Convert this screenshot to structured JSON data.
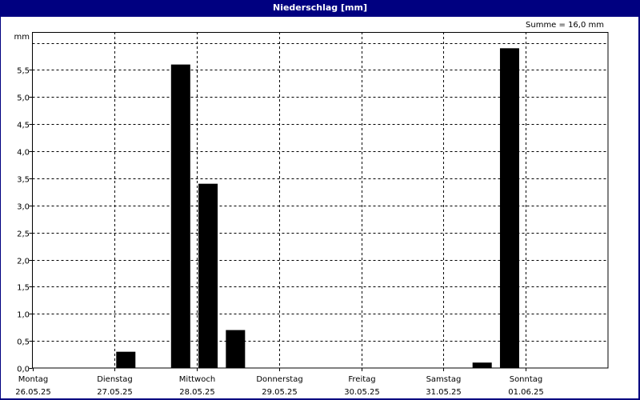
{
  "window": {
    "title": "Niederschlag [mm]"
  },
  "colors": {
    "titlebar": "#000080",
    "bars": "#000000",
    "background": "#ffffff"
  },
  "chart_data": {
    "type": "bar",
    "title": "Niederschlag [mm]",
    "ylabel": "mm",
    "annotation": "Summe = 16,0 mm",
    "ylim": [
      0,
      6.2
    ],
    "yticks": [
      "0,0",
      "0,5",
      "1,0",
      "1,5",
      "2,0",
      "2,5",
      "3,0",
      "3,5",
      "4,0",
      "4,5",
      "5,0",
      "5,5"
    ],
    "grid": true,
    "periods_per_day": 3,
    "days": [
      {
        "name": "Montag",
        "date": "26.05.25"
      },
      {
        "name": "Dienstag",
        "date": "27.05.25"
      },
      {
        "name": "Mittwoch",
        "date": "28.05.25"
      },
      {
        "name": "Donnerstag",
        "date": "29.05.25"
      },
      {
        "name": "Freitag",
        "date": "30.05.25"
      },
      {
        "name": "Samstag",
        "date": "31.05.25"
      },
      {
        "name": "Sonntag",
        "date": "01.06.25"
      }
    ],
    "values": [
      0,
      0,
      0,
      0.3,
      0,
      5.6,
      3.4,
      0.7,
      0,
      0,
      0,
      0,
      0,
      0,
      0,
      0,
      0.1,
      5.9,
      0,
      0,
      0
    ]
  }
}
